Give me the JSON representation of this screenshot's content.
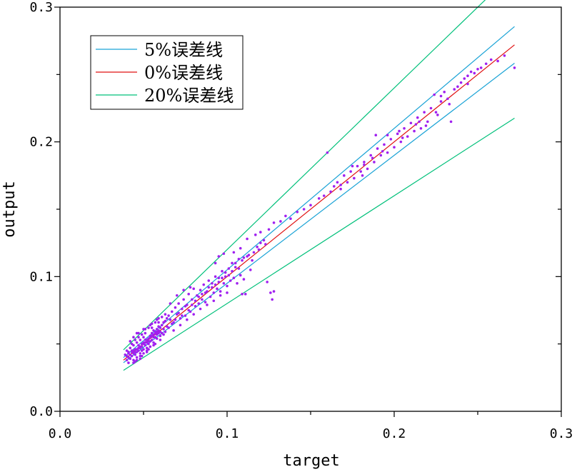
{
  "chart_data": {
    "type": "scatter",
    "xlabel": "target",
    "ylabel": "output",
    "xlim": [
      0,
      0.3
    ],
    "ylim": [
      0,
      0.3
    ],
    "x_ticks": [
      0,
      0.1,
      0.2,
      0.3
    ],
    "x_tick_labels": [
      "0.0",
      "0.1",
      "0.2",
      "0.3"
    ],
    "y_ticks": [
      0,
      0.1,
      0.2,
      0.3
    ],
    "y_tick_labels": [
      "0.0",
      "0.1",
      "0.2",
      "0.3"
    ],
    "grid": false,
    "legend_position": "top-left",
    "lines": [
      {
        "name": "5%误差线",
        "color": "#1aa3d6",
        "x": [
          0.038,
          0.272
        ],
        "y_factor_upper": 1.05,
        "y_factor_lower": 0.95
      },
      {
        "name": "0%误差线",
        "color": "#e01010",
        "x": [
          0.038,
          0.272
        ],
        "y_factor": 1.0
      },
      {
        "name": "20%误差线",
        "color": "#00c07a",
        "x": [
          0.038,
          0.272
        ],
        "y_factor_upper": 1.2,
        "y_factor_lower": 0.8
      }
    ],
    "points_color": "#a020f0",
    "points": [
      [
        0.039,
        0.042
      ],
      [
        0.04,
        0.038
      ],
      [
        0.04,
        0.045
      ],
      [
        0.041,
        0.04
      ],
      [
        0.041,
        0.044
      ],
      [
        0.042,
        0.039
      ],
      [
        0.042,
        0.047
      ],
      [
        0.043,
        0.041
      ],
      [
        0.043,
        0.045
      ],
      [
        0.044,
        0.043
      ],
      [
        0.044,
        0.038
      ],
      [
        0.044,
        0.049
      ],
      [
        0.045,
        0.042
      ],
      [
        0.045,
        0.046
      ],
      [
        0.046,
        0.044
      ],
      [
        0.046,
        0.04
      ],
      [
        0.046,
        0.051
      ],
      [
        0.047,
        0.045
      ],
      [
        0.047,
        0.049
      ],
      [
        0.048,
        0.047
      ],
      [
        0.048,
        0.043
      ],
      [
        0.048,
        0.053
      ],
      [
        0.049,
        0.048
      ],
      [
        0.049,
        0.045
      ],
      [
        0.05,
        0.05
      ],
      [
        0.05,
        0.046
      ],
      [
        0.05,
        0.055
      ],
      [
        0.051,
        0.049
      ],
      [
        0.051,
        0.053
      ],
      [
        0.052,
        0.051
      ],
      [
        0.052,
        0.047
      ],
      [
        0.053,
        0.054
      ],
      [
        0.053,
        0.05
      ],
      [
        0.054,
        0.056
      ],
      [
        0.054,
        0.052
      ],
      [
        0.055,
        0.058
      ],
      [
        0.055,
        0.053
      ],
      [
        0.056,
        0.057
      ],
      [
        0.056,
        0.06
      ],
      [
        0.057,
        0.055
      ],
      [
        0.057,
        0.059
      ],
      [
        0.058,
        0.061
      ],
      [
        0.058,
        0.057
      ],
      [
        0.059,
        0.063
      ],
      [
        0.059,
        0.058
      ],
      [
        0.06,
        0.062
      ],
      [
        0.06,
        0.059
      ],
      [
        0.061,
        0.064
      ],
      [
        0.062,
        0.061
      ],
      [
        0.062,
        0.066
      ],
      [
        0.041,
        0.036
      ],
      [
        0.043,
        0.05
      ],
      [
        0.045,
        0.037
      ],
      [
        0.047,
        0.055
      ],
      [
        0.049,
        0.041
      ],
      [
        0.051,
        0.058
      ],
      [
        0.053,
        0.046
      ],
      [
        0.055,
        0.062
      ],
      [
        0.057,
        0.05
      ],
      [
        0.059,
        0.066
      ],
      [
        0.042,
        0.052
      ],
      [
        0.044,
        0.055
      ],
      [
        0.046,
        0.058
      ],
      [
        0.048,
        0.039
      ],
      [
        0.05,
        0.061
      ],
      [
        0.052,
        0.044
      ],
      [
        0.054,
        0.064
      ],
      [
        0.056,
        0.049
      ],
      [
        0.058,
        0.068
      ],
      [
        0.06,
        0.053
      ],
      [
        0.063,
        0.067
      ],
      [
        0.064,
        0.063
      ],
      [
        0.065,
        0.071
      ],
      [
        0.066,
        0.068
      ],
      [
        0.067,
        0.074
      ],
      [
        0.068,
        0.066
      ],
      [
        0.069,
        0.077
      ],
      [
        0.07,
        0.072
      ],
      [
        0.071,
        0.08
      ],
      [
        0.072,
        0.069
      ],
      [
        0.073,
        0.076
      ],
      [
        0.074,
        0.083
      ],
      [
        0.075,
        0.071
      ],
      [
        0.076,
        0.079
      ],
      [
        0.077,
        0.087
      ],
      [
        0.078,
        0.074
      ],
      [
        0.079,
        0.083
      ],
      [
        0.08,
        0.091
      ],
      [
        0.081,
        0.078
      ],
      [
        0.082,
        0.086
      ],
      [
        0.083,
        0.08
      ],
      [
        0.084,
        0.09
      ],
      [
        0.085,
        0.083
      ],
      [
        0.086,
        0.094
      ],
      [
        0.087,
        0.081
      ],
      [
        0.088,
        0.089
      ],
      [
        0.089,
        0.097
      ],
      [
        0.09,
        0.085
      ],
      [
        0.091,
        0.092
      ],
      [
        0.092,
        0.088
      ],
      [
        0.093,
        0.1
      ],
      [
        0.094,
        0.091
      ],
      [
        0.095,
        0.096
      ],
      [
        0.096,
        0.089
      ],
      [
        0.097,
        0.104
      ],
      [
        0.098,
        0.095
      ],
      [
        0.099,
        0.1
      ],
      [
        0.1,
        0.093
      ],
      [
        0.101,
        0.106
      ],
      [
        0.102,
        0.097
      ],
      [
        0.103,
        0.11
      ],
      [
        0.104,
        0.099
      ],
      [
        0.105,
        0.107
      ],
      [
        0.106,
        0.095
      ],
      [
        0.107,
        0.113
      ],
      [
        0.108,
        0.101
      ],
      [
        0.109,
        0.112
      ],
      [
        0.11,
        0.098
      ],
      [
        0.112,
        0.115
      ],
      [
        0.114,
        0.105
      ],
      [
        0.116,
        0.118
      ],
      [
        0.118,
        0.122
      ],
      [
        0.12,
        0.125
      ],
      [
        0.122,
        0.127
      ],
      [
        0.124,
        0.096
      ],
      [
        0.126,
        0.088
      ],
      [
        0.128,
        0.089
      ],
      [
        0.127,
        0.083
      ],
      [
        0.111,
        0.087
      ],
      [
        0.109,
        0.087
      ],
      [
        0.066,
        0.08
      ],
      [
        0.07,
        0.086
      ],
      [
        0.074,
        0.09
      ],
      [
        0.078,
        0.092
      ],
      [
        0.068,
        0.06
      ],
      [
        0.072,
        0.064
      ],
      [
        0.076,
        0.068
      ],
      [
        0.08,
        0.072
      ],
      [
        0.084,
        0.076
      ],
      [
        0.088,
        0.079
      ],
      [
        0.092,
        0.082
      ],
      [
        0.096,
        0.086
      ],
      [
        0.1,
        0.088
      ],
      [
        0.095,
        0.115
      ],
      [
        0.098,
        0.117
      ],
      [
        0.093,
        0.11
      ],
      [
        0.104,
        0.118
      ],
      [
        0.108,
        0.121
      ],
      [
        0.112,
        0.128
      ],
      [
        0.117,
        0.131
      ],
      [
        0.12,
        0.133
      ],
      [
        0.125,
        0.135
      ],
      [
        0.128,
        0.14
      ],
      [
        0.132,
        0.141
      ],
      [
        0.135,
        0.145
      ],
      [
        0.138,
        0.143
      ],
      [
        0.142,
        0.148
      ],
      [
        0.146,
        0.15
      ],
      [
        0.15,
        0.153
      ],
      [
        0.155,
        0.158
      ],
      [
        0.158,
        0.16
      ],
      [
        0.16,
        0.192
      ],
      [
        0.162,
        0.163
      ],
      [
        0.164,
        0.167
      ],
      [
        0.166,
        0.17
      ],
      [
        0.168,
        0.165
      ],
      [
        0.17,
        0.175
      ],
      [
        0.172,
        0.17
      ],
      [
        0.174,
        0.178
      ],
      [
        0.176,
        0.173
      ],
      [
        0.178,
        0.182
      ],
      [
        0.18,
        0.178
      ],
      [
        0.182,
        0.185
      ],
      [
        0.184,
        0.18
      ],
      [
        0.186,
        0.19
      ],
      [
        0.188,
        0.185
      ],
      [
        0.19,
        0.195
      ],
      [
        0.189,
        0.205
      ],
      [
        0.192,
        0.19
      ],
      [
        0.194,
        0.198
      ],
      [
        0.196,
        0.192
      ],
      [
        0.198,
        0.202
      ],
      [
        0.2,
        0.196
      ],
      [
        0.202,
        0.206
      ],
      [
        0.204,
        0.2
      ],
      [
        0.206,
        0.21
      ],
      [
        0.208,
        0.204
      ],
      [
        0.21,
        0.214
      ],
      [
        0.212,
        0.208
      ],
      [
        0.214,
        0.218
      ],
      [
        0.216,
        0.21
      ],
      [
        0.218,
        0.222
      ],
      [
        0.22,
        0.215
      ],
      [
        0.222,
        0.225
      ],
      [
        0.224,
        0.235
      ],
      [
        0.226,
        0.22
      ],
      [
        0.228,
        0.23
      ],
      [
        0.23,
        0.237
      ],
      [
        0.232,
        0.232
      ],
      [
        0.234,
        0.215
      ],
      [
        0.236,
        0.239
      ],
      [
        0.238,
        0.241
      ],
      [
        0.24,
        0.244
      ],
      [
        0.242,
        0.247
      ],
      [
        0.244,
        0.249
      ],
      [
        0.246,
        0.252
      ],
      [
        0.248,
        0.251
      ],
      [
        0.25,
        0.254
      ],
      [
        0.252,
        0.255
      ],
      [
        0.255,
        0.258
      ],
      [
        0.258,
        0.261
      ],
      [
        0.262,
        0.26
      ],
      [
        0.266,
        0.264
      ],
      [
        0.272,
        0.255
      ],
      [
        0.168,
        0.168
      ],
      [
        0.175,
        0.182
      ],
      [
        0.181,
        0.175
      ],
      [
        0.187,
        0.188
      ],
      [
        0.196,
        0.205
      ],
      [
        0.205,
        0.203
      ],
      [
        0.215,
        0.215
      ],
      [
        0.225,
        0.222
      ],
      [
        0.233,
        0.228
      ],
      [
        0.244,
        0.243
      ],
      [
        0.182,
        0.183
      ],
      [
        0.193,
        0.193
      ],
      [
        0.203,
        0.208
      ],
      [
        0.213,
        0.213
      ],
      [
        0.219,
        0.212
      ],
      [
        0.228,
        0.234
      ],
      [
        0.061,
        0.058
      ],
      [
        0.063,
        0.059
      ],
      [
        0.064,
        0.069
      ],
      [
        0.065,
        0.062
      ],
      [
        0.067,
        0.065
      ],
      [
        0.069,
        0.068
      ],
      [
        0.071,
        0.073
      ],
      [
        0.073,
        0.071
      ],
      [
        0.075,
        0.078
      ],
      [
        0.077,
        0.075
      ],
      [
        0.079,
        0.079
      ],
      [
        0.081,
        0.082
      ],
      [
        0.083,
        0.085
      ],
      [
        0.085,
        0.087
      ],
      [
        0.087,
        0.088
      ],
      [
        0.089,
        0.092
      ],
      [
        0.091,
        0.095
      ],
      [
        0.093,
        0.094
      ],
      [
        0.095,
        0.099
      ],
      [
        0.097,
        0.099
      ],
      [
        0.099,
        0.103
      ],
      [
        0.101,
        0.101
      ],
      [
        0.103,
        0.104
      ],
      [
        0.105,
        0.11
      ],
      [
        0.107,
        0.106
      ],
      [
        0.11,
        0.114
      ],
      [
        0.113,
        0.116
      ],
      [
        0.115,
        0.112
      ],
      [
        0.119,
        0.12
      ],
      [
        0.123,
        0.124
      ],
      [
        0.04,
        0.041
      ],
      [
        0.041,
        0.043
      ],
      [
        0.042,
        0.042
      ],
      [
        0.043,
        0.044
      ],
      [
        0.044,
        0.045
      ],
      [
        0.045,
        0.044
      ],
      [
        0.046,
        0.046
      ],
      [
        0.047,
        0.047
      ],
      [
        0.048,
        0.048
      ],
      [
        0.049,
        0.05
      ],
      [
        0.05,
        0.051
      ],
      [
        0.051,
        0.051
      ],
      [
        0.052,
        0.053
      ],
      [
        0.053,
        0.052
      ],
      [
        0.054,
        0.055
      ],
      [
        0.055,
        0.056
      ],
      [
        0.056,
        0.055
      ],
      [
        0.057,
        0.058
      ],
      [
        0.058,
        0.059
      ],
      [
        0.059,
        0.06
      ],
      [
        0.045,
        0.053
      ],
      [
        0.047,
        0.058
      ],
      [
        0.049,
        0.057
      ],
      [
        0.051,
        0.061
      ],
      [
        0.053,
        0.062
      ],
      [
        0.055,
        0.065
      ],
      [
        0.057,
        0.066
      ],
      [
        0.059,
        0.069
      ],
      [
        0.061,
        0.07
      ],
      [
        0.063,
        0.072
      ],
      [
        0.044,
        0.036
      ],
      [
        0.046,
        0.038
      ],
      [
        0.048,
        0.041
      ],
      [
        0.05,
        0.043
      ],
      [
        0.052,
        0.045
      ],
      [
        0.054,
        0.048
      ],
      [
        0.056,
        0.051
      ],
      [
        0.058,
        0.054
      ],
      [
        0.06,
        0.056
      ],
      [
        0.062,
        0.057
      ]
    ]
  }
}
